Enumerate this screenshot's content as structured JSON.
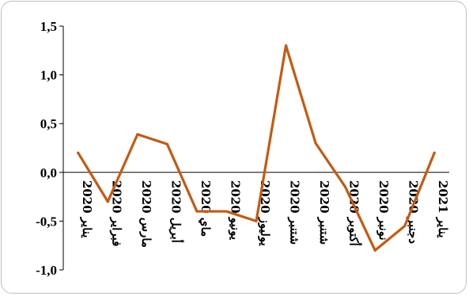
{
  "chart_data": {
    "type": "line",
    "title": "",
    "xlabel": "",
    "ylabel": "",
    "ylim": [
      -1.0,
      1.5
    ],
    "y_ticks": [
      "-1,0",
      "-0,5",
      "0,0",
      "0,5",
      "1,0",
      "1,5"
    ],
    "y_tick_values": [
      -1.0,
      -0.5,
      0.0,
      0.5,
      1.0,
      1.5
    ],
    "categories": [
      "يناير 2020",
      "فبراير 2020",
      "مارس 2020",
      "أبريل 2020",
      "ماي 2020",
      "يونيو 2020",
      "يوليوز 2020",
      "شتنبر 2020",
      "شتنبر 2020",
      "أكتوبر 2020",
      "نونبر 2020",
      "دجنبر 2020",
      "يناير 2021"
    ],
    "series": [
      {
        "values": [
          0.2,
          -0.3,
          0.39,
          0.29,
          -0.4,
          -0.4,
          -0.5,
          1.3,
          0.3,
          -0.15,
          -0.8,
          -0.55,
          0.2
        ]
      }
    ],
    "grid": false,
    "legend": "none",
    "colors": {
      "line": "#c55a11",
      "axis": "#000000",
      "frame": "#bfbfbf"
    }
  }
}
